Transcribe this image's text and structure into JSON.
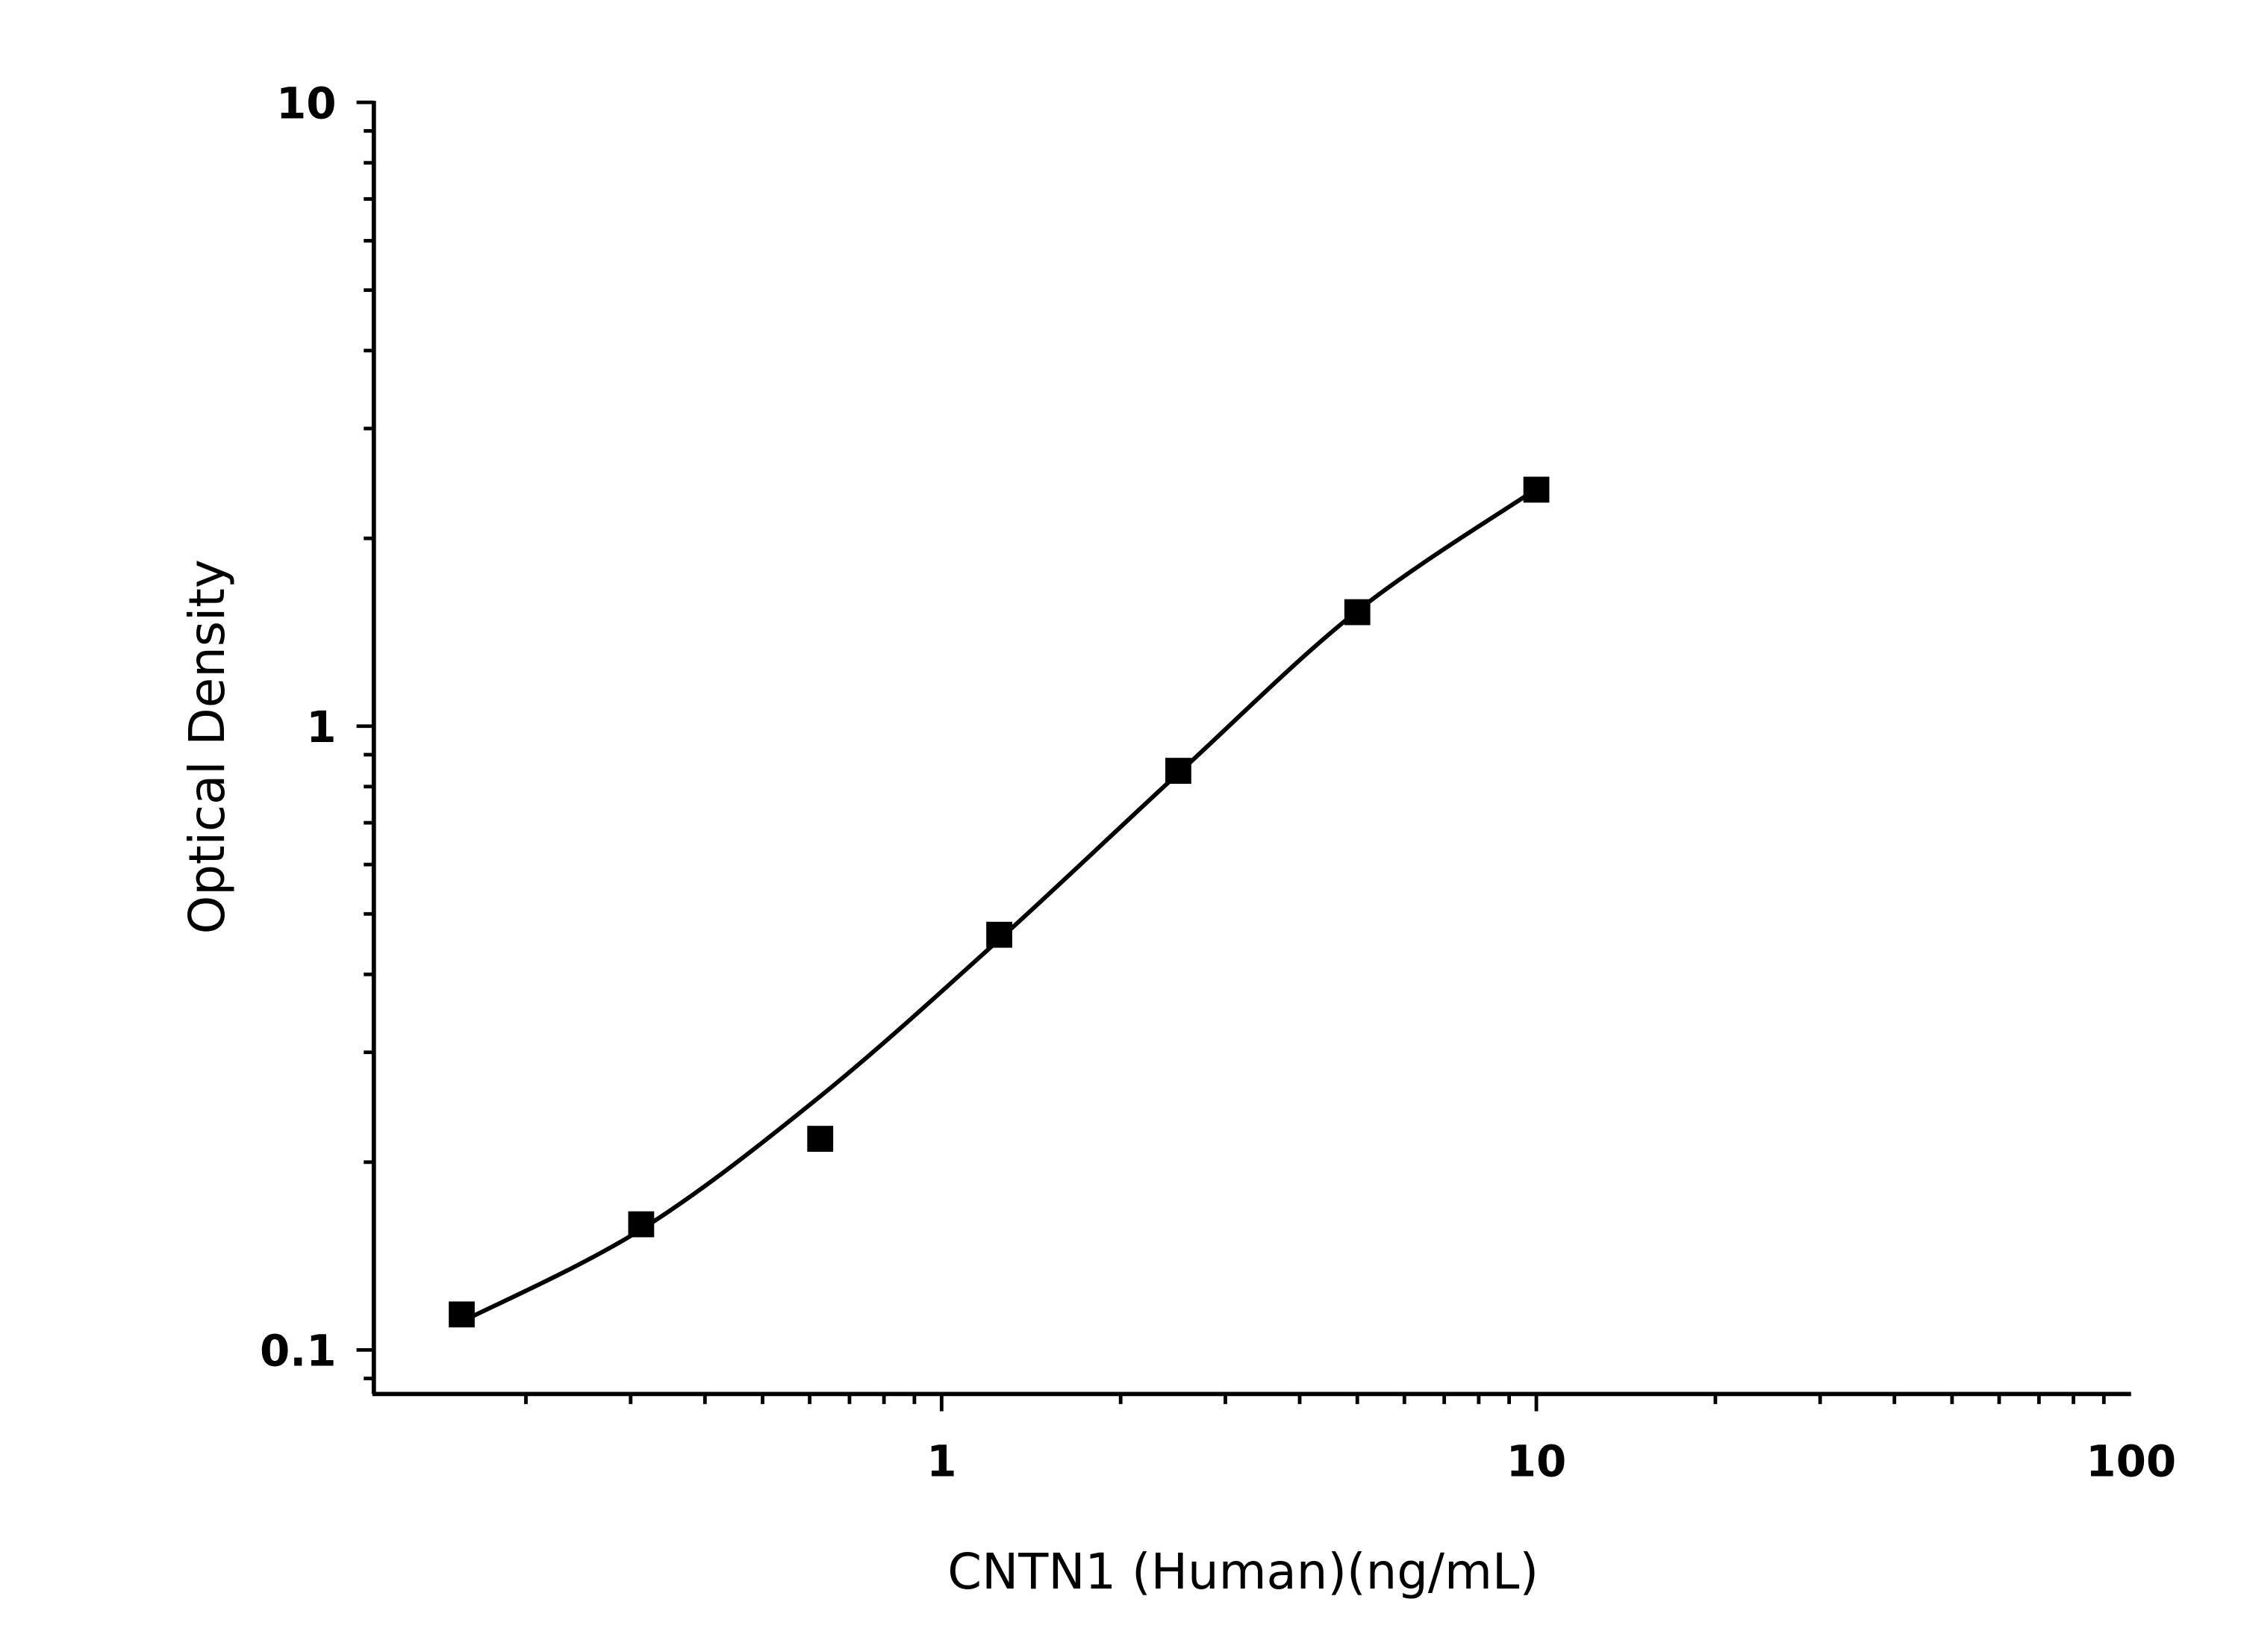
{
  "chart_data": {
    "type": "scatter",
    "title": "",
    "xlabel": "CNTN1 (Human)(ng/mL)",
    "ylabel": "Optical Density",
    "x_scale": "log",
    "y_scale": "log",
    "xlim": [
      0.111,
      100
    ],
    "ylim": [
      0.085,
      10
    ],
    "x_ticks": [
      {
        "value": 1,
        "label": "1"
      },
      {
        "value": 10,
        "label": "10"
      },
      {
        "value": 100,
        "label": "100"
      }
    ],
    "y_ticks": [
      {
        "value": 0.1,
        "label": "0.1"
      },
      {
        "value": 1,
        "label": "1"
      },
      {
        "value": 10,
        "label": "10"
      }
    ],
    "grid": false,
    "marker": "square",
    "color": "#000000",
    "points": {
      "x": [
        0.156,
        0.3125,
        0.625,
        1.25,
        2.5,
        5,
        10
      ],
      "y": [
        0.114,
        0.159,
        0.218,
        0.463,
        0.848,
        1.523,
        2.394
      ]
    },
    "fit_curve": {
      "x": [
        0.156,
        0.3125,
        0.625,
        1.25,
        2.5,
        5,
        10
      ],
      "y": [
        0.111,
        0.156,
        0.255,
        0.455,
        0.84,
        1.53,
        2.4
      ]
    }
  }
}
